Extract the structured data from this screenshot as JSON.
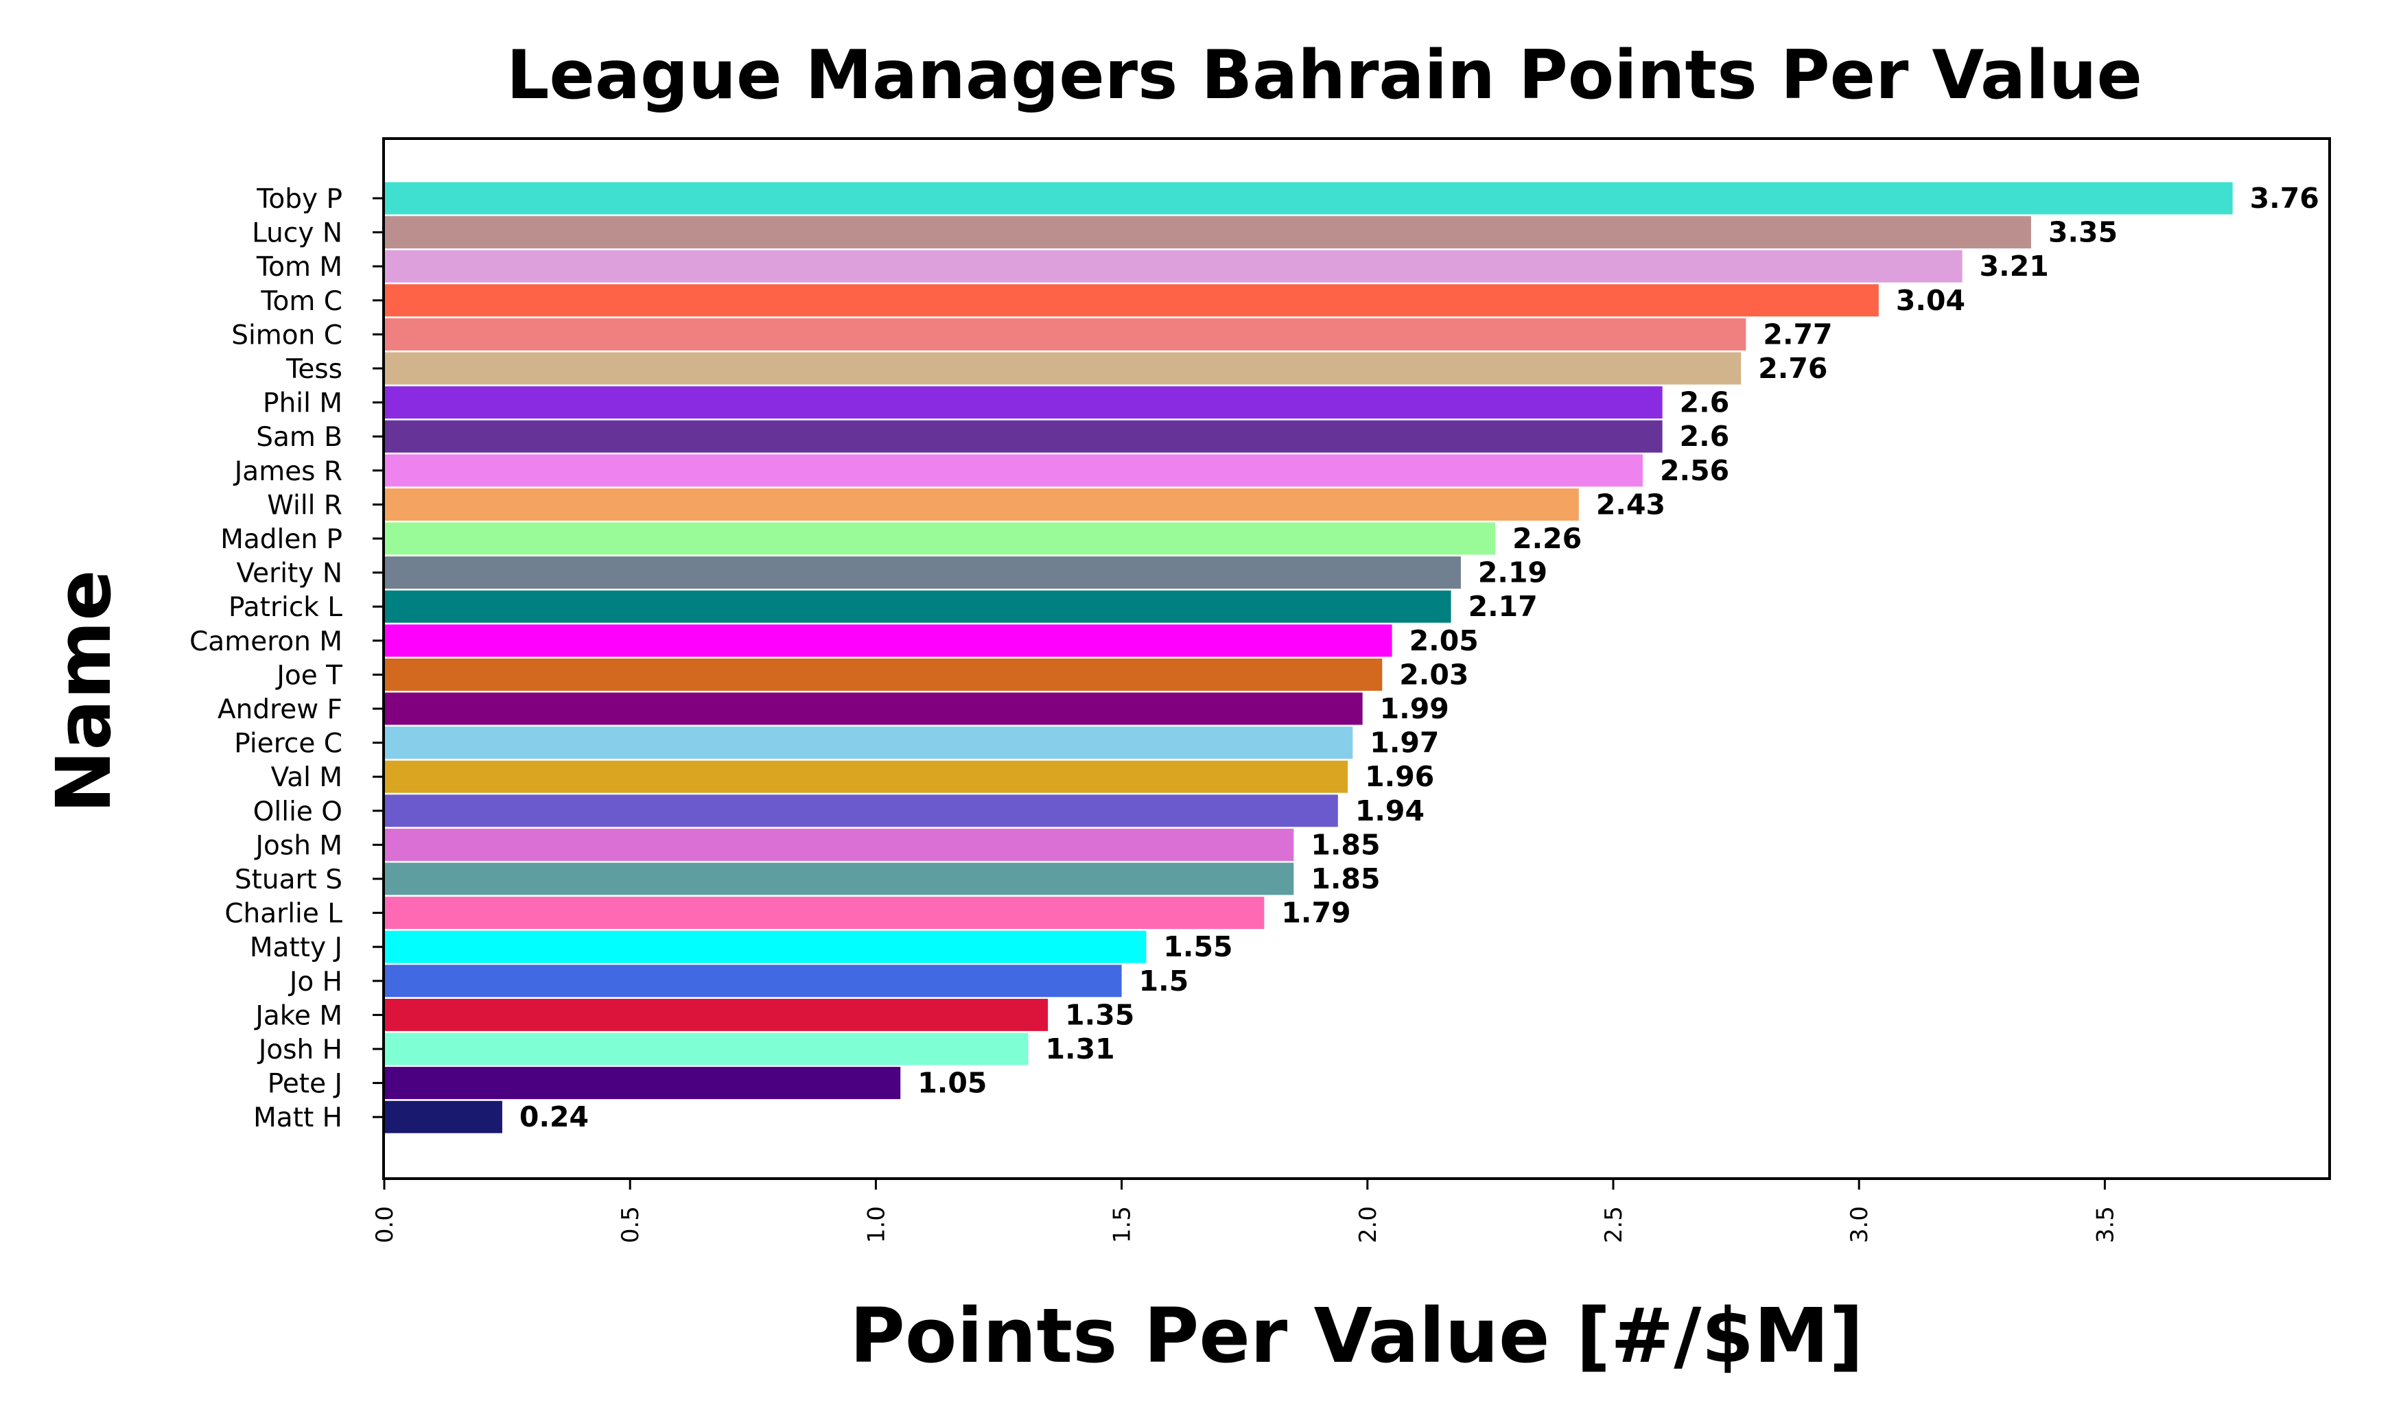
{
  "chart_data": {
    "type": "bar",
    "orientation": "horizontal",
    "title": "League Managers Bahrain Points Per Value",
    "xlabel": "Points Per Value [#/$M]",
    "ylabel": "Name",
    "xlim": [
      0,
      3.95
    ],
    "xticks": [
      0.0,
      0.5,
      1.0,
      1.5,
      2.0,
      2.5,
      3.0,
      3.5
    ],
    "xtick_labels": [
      "0.0",
      "0.5",
      "1.0",
      "1.5",
      "2.0",
      "2.5",
      "3.0",
      "3.5"
    ],
    "grid": false,
    "legend": "none",
    "categories": [
      "Toby P",
      "Lucy N",
      "Tom M",
      "Tom C",
      "Simon C",
      "Tess",
      "Phil M",
      "Sam B",
      "James R",
      "Will R",
      "Madlen P",
      "Verity N",
      "Patrick L",
      "Cameron M",
      "Joe T",
      "Andrew F",
      "Pierce C",
      "Val M",
      "Ollie O",
      "Josh M",
      "Stuart S",
      "Charlie L",
      "Matty J",
      "Jo H",
      "Jake M",
      "Josh H",
      "Pete J",
      "Matt H"
    ],
    "values": [
      3.76,
      3.35,
      3.21,
      3.04,
      2.77,
      2.76,
      2.6,
      2.6,
      2.56,
      2.43,
      2.26,
      2.19,
      2.17,
      2.05,
      2.03,
      1.99,
      1.97,
      1.96,
      1.94,
      1.85,
      1.85,
      1.79,
      1.55,
      1.5,
      1.35,
      1.31,
      1.05,
      0.24
    ],
    "value_labels": [
      "3.76",
      "3.35",
      "3.21",
      "3.04",
      "2.77",
      "2.76",
      "2.6",
      "2.6",
      "2.56",
      "2.43",
      "2.26",
      "2.19",
      "2.17",
      "2.05",
      "2.03",
      "1.99",
      "1.97",
      "1.96",
      "1.94",
      "1.85",
      "1.85",
      "1.79",
      "1.55",
      "1.5",
      "1.35",
      "1.31",
      "1.05",
      "0.24"
    ],
    "colors": [
      "#40E0D0",
      "#BC8F8F",
      "#DDA0DD",
      "#FF6347",
      "#F08080",
      "#D2B48C",
      "#8A2BE2",
      "#663399",
      "#EE82EE",
      "#F4A460",
      "#98FB98",
      "#708090",
      "#008080",
      "#FF00FF",
      "#D2691E",
      "#800080",
      "#87CEEB",
      "#DAA520",
      "#6A5ACD",
      "#DA70D6",
      "#5F9EA0",
      "#FF69B4",
      "#00FFFF",
      "#4169E1",
      "#DC143C",
      "#7FFFD4",
      "#4B0082",
      "#191970"
    ]
  }
}
